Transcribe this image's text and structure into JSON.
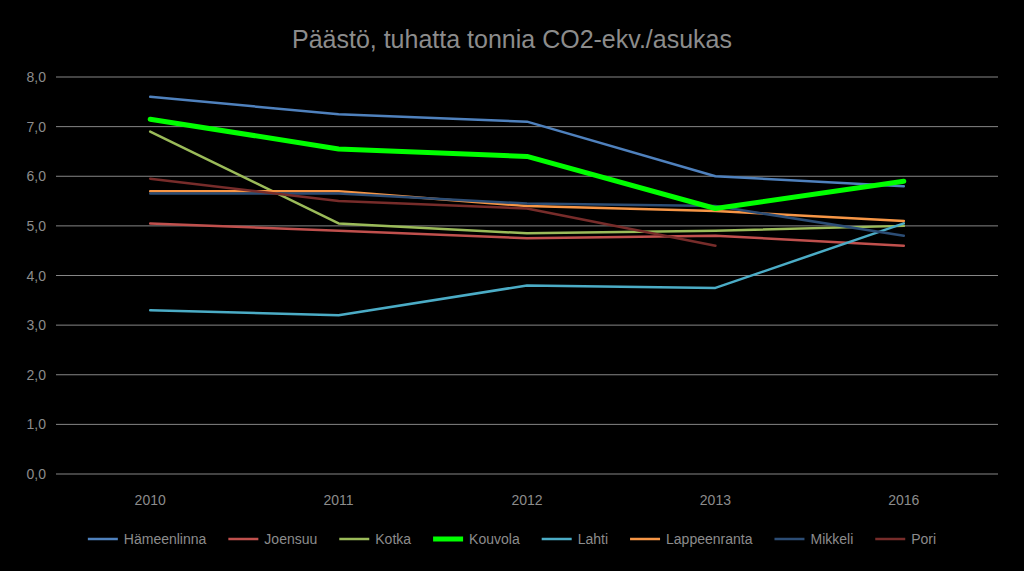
{
  "chart_data": {
    "type": "line",
    "title": "Päästö, tuhatta tonnia CO2-ekv./asukas",
    "categories": [
      "2010",
      "2011",
      "2012",
      "2013",
      "2016"
    ],
    "ylim": [
      0,
      8
    ],
    "yticks": [
      {
        "value": 0,
        "label": "0,0"
      },
      {
        "value": 1,
        "label": "1,0"
      },
      {
        "value": 2,
        "label": "2,0"
      },
      {
        "value": 3,
        "label": "3,0"
      },
      {
        "value": 4,
        "label": "4,0"
      },
      {
        "value": 5,
        "label": "5,0"
      },
      {
        "value": 6,
        "label": "6,0"
      },
      {
        "value": 7,
        "label": "7,0"
      },
      {
        "value": 8,
        "label": "8,0"
      }
    ],
    "grid": true,
    "legend": "bottom",
    "series": [
      {
        "name": "Hämeenlinna",
        "color": "#4f81bd",
        "values": [
          7.6,
          7.25,
          7.1,
          6.0,
          5.8
        ]
      },
      {
        "name": "Joensuu",
        "color": "#c0504d",
        "values": [
          5.05,
          4.9,
          4.75,
          4.8,
          4.6
        ]
      },
      {
        "name": "Kotka",
        "color": "#9bbb59",
        "values": [
          6.9,
          5.05,
          4.85,
          4.9,
          5.0
        ]
      },
      {
        "name": "Kouvola",
        "color": "#00ff00",
        "line_style": "bold",
        "values": [
          7.15,
          6.55,
          6.4,
          5.35,
          5.9
        ]
      },
      {
        "name": "Lahti",
        "color": "#4bacc6",
        "values": [
          3.3,
          3.2,
          3.8,
          3.75,
          5.05
        ]
      },
      {
        "name": "Lappeenranta",
        "color": "#f79646",
        "values": [
          5.7,
          5.7,
          5.4,
          5.3,
          5.1
        ]
      },
      {
        "name": "Mikkeli",
        "color": "#2c4d75",
        "values": [
          5.65,
          5.65,
          5.45,
          5.4,
          4.8
        ]
      },
      {
        "name": "Pori",
        "color": "#772c2a",
        "values": [
          5.95,
          5.5,
          5.35,
          4.6,
          null
        ]
      }
    ]
  }
}
